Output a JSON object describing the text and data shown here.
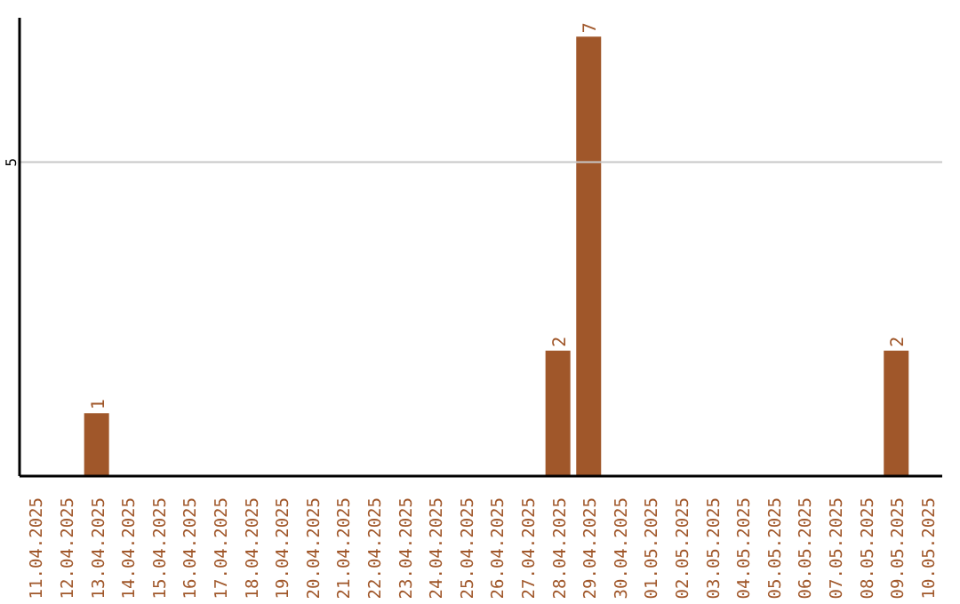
{
  "chart_data": {
    "type": "bar",
    "categories": [
      "11.04.2025",
      "12.04.2025",
      "13.04.2025",
      "14.04.2025",
      "15.04.2025",
      "16.04.2025",
      "17.04.2025",
      "18.04.2025",
      "19.04.2025",
      "20.04.2025",
      "21.04.2025",
      "22.04.2025",
      "23.04.2025",
      "24.04.2025",
      "25.04.2025",
      "26.04.2025",
      "27.04.2025",
      "28.04.2025",
      "29.04.2025",
      "30.04.2025",
      "01.05.2025",
      "02.05.2025",
      "03.05.2025",
      "04.05.2025",
      "05.05.2025",
      "06.05.2025",
      "07.05.2025",
      "08.05.2025",
      "09.05.2025",
      "10.05.2025"
    ],
    "values": [
      0,
      0,
      1,
      0,
      0,
      0,
      0,
      0,
      0,
      0,
      0,
      0,
      0,
      0,
      0,
      0,
      0,
      2,
      7,
      0,
      0,
      0,
      0,
      0,
      0,
      0,
      0,
      0,
      2,
      0
    ],
    "value_labels": [
      null,
      null,
      "1",
      null,
      null,
      null,
      null,
      null,
      null,
      null,
      null,
      null,
      null,
      null,
      null,
      null,
      null,
      "2",
      "7",
      null,
      null,
      null,
      null,
      null,
      null,
      null,
      null,
      null,
      "2",
      null
    ],
    "color": "#a0572a",
    "ylim": [
      0,
      7.3
    ],
    "yticks": [
      5
    ],
    "grid": "y"
  }
}
